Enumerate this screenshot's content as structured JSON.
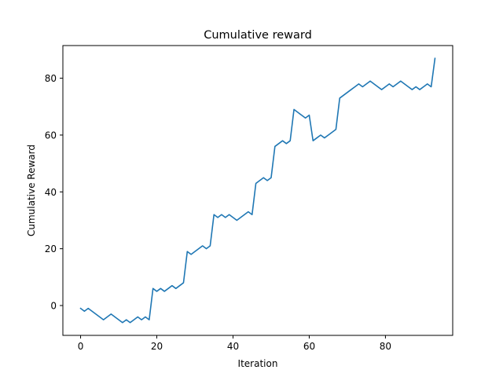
{
  "chart_data": {
    "type": "line",
    "title": "Cumulative reward",
    "xlabel": "Iteration",
    "ylabel": "Cumulative Reward",
    "xlim": [
      -4.65,
      97.65
    ],
    "ylim": [
      -10.5,
      91.5
    ],
    "xticks": [
      0,
      20,
      40,
      60,
      80
    ],
    "yticks": [
      0,
      20,
      40,
      60,
      80
    ],
    "grid": false,
    "series": [
      {
        "color": "#1f77b4",
        "x": [
          0,
          1,
          2,
          3,
          4,
          5,
          6,
          7,
          8,
          9,
          10,
          11,
          12,
          13,
          14,
          15,
          16,
          17,
          18,
          19,
          20,
          21,
          22,
          23,
          24,
          25,
          26,
          27,
          28,
          29,
          30,
          31,
          32,
          33,
          34,
          35,
          36,
          37,
          38,
          39,
          40,
          41,
          42,
          43,
          44,
          45,
          46,
          47,
          48,
          49,
          50,
          51,
          52,
          53,
          54,
          55,
          56,
          57,
          58,
          59,
          60,
          61,
          62,
          63,
          64,
          65,
          66,
          67,
          68,
          69,
          70,
          71,
          72,
          73,
          74,
          75,
          76,
          77,
          78,
          79,
          80,
          81,
          82,
          83,
          84,
          85,
          86,
          87,
          88,
          89,
          90,
          91,
          92,
          93
        ],
        "y": [
          -1,
          -2,
          -1,
          -2,
          -3,
          -4,
          -5,
          -4,
          -3,
          -4,
          -5,
          -6,
          -5,
          -6,
          -5,
          -4,
          -5,
          -4,
          -5,
          6,
          5,
          6,
          5,
          6,
          7,
          6,
          7,
          8,
          19,
          18,
          19,
          20,
          21,
          20,
          21,
          32,
          31,
          32,
          31,
          32,
          31,
          30,
          31,
          32,
          33,
          32,
          43,
          44,
          45,
          44,
          45,
          56,
          57,
          58,
          57,
          58,
          69,
          68,
          67,
          66,
          67,
          58,
          59,
          60,
          59,
          60,
          61,
          62,
          73,
          74,
          75,
          76,
          77,
          78,
          77,
          78,
          79,
          78,
          77,
          76,
          77,
          78,
          77,
          78,
          79,
          78,
          77,
          76,
          77,
          76,
          77,
          78,
          77,
          87
        ]
      }
    ]
  }
}
